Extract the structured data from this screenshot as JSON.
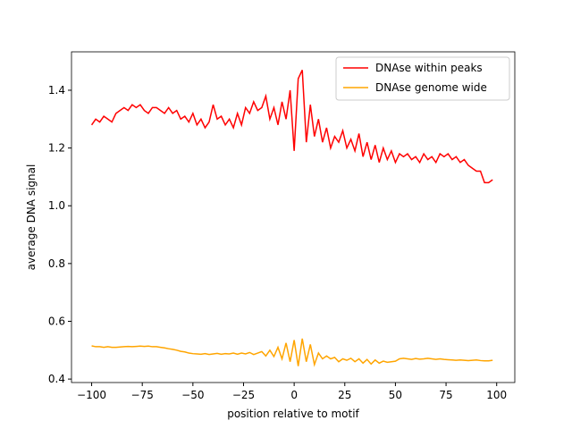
{
  "chart_data": {
    "type": "line",
    "xlabel": "position relative to motif",
    "ylabel": "average DNA signal",
    "x": [
      -100,
      -98,
      -96,
      -94,
      -92,
      -90,
      -88,
      -86,
      -84,
      -82,
      -80,
      -78,
      -76,
      -74,
      -72,
      -70,
      -68,
      -66,
      -64,
      -62,
      -60,
      -58,
      -56,
      -54,
      -52,
      -50,
      -48,
      -46,
      -44,
      -42,
      -40,
      -38,
      -36,
      -34,
      -32,
      -30,
      -28,
      -26,
      -24,
      -22,
      -20,
      -18,
      -16,
      -14,
      -12,
      -10,
      -8,
      -6,
      -4,
      -2,
      0,
      2,
      4,
      6,
      8,
      10,
      12,
      14,
      16,
      18,
      20,
      22,
      24,
      26,
      28,
      30,
      32,
      34,
      36,
      38,
      40,
      42,
      44,
      46,
      48,
      50,
      52,
      54,
      56,
      58,
      60,
      62,
      64,
      66,
      68,
      70,
      72,
      74,
      76,
      78,
      80,
      82,
      84,
      86,
      88,
      90,
      92,
      94,
      96,
      98
    ],
    "series": [
      {
        "name": "DNAse within peaks",
        "color": "#ff0000",
        "values": [
          1.28,
          1.3,
          1.29,
          1.31,
          1.3,
          1.29,
          1.32,
          1.33,
          1.34,
          1.33,
          1.35,
          1.34,
          1.35,
          1.33,
          1.32,
          1.34,
          1.34,
          1.33,
          1.32,
          1.34,
          1.32,
          1.33,
          1.3,
          1.31,
          1.29,
          1.32,
          1.28,
          1.3,
          1.27,
          1.29,
          1.35,
          1.3,
          1.31,
          1.28,
          1.3,
          1.27,
          1.32,
          1.28,
          1.34,
          1.32,
          1.36,
          1.33,
          1.34,
          1.38,
          1.3,
          1.34,
          1.28,
          1.36,
          1.3,
          1.4,
          1.19,
          1.44,
          1.47,
          1.22,
          1.35,
          1.24,
          1.3,
          1.22,
          1.27,
          1.2,
          1.24,
          1.22,
          1.26,
          1.2,
          1.23,
          1.19,
          1.25,
          1.17,
          1.22,
          1.16,
          1.21,
          1.15,
          1.2,
          1.16,
          1.19,
          1.15,
          1.18,
          1.17,
          1.18,
          1.16,
          1.17,
          1.15,
          1.18,
          1.16,
          1.17,
          1.15,
          1.18,
          1.17,
          1.18,
          1.16,
          1.17,
          1.15,
          1.16,
          1.14,
          1.13,
          1.12,
          1.12,
          1.08,
          1.08,
          1.09
        ]
      },
      {
        "name": "DNAse genome wide",
        "color": "#ffa500",
        "values": [
          0.515,
          0.512,
          0.512,
          0.51,
          0.512,
          0.51,
          0.51,
          0.511,
          0.512,
          0.513,
          0.512,
          0.513,
          0.514,
          0.513,
          0.514,
          0.512,
          0.512,
          0.51,
          0.508,
          0.505,
          0.503,
          0.5,
          0.496,
          0.494,
          0.49,
          0.488,
          0.487,
          0.486,
          0.488,
          0.485,
          0.487,
          0.489,
          0.486,
          0.488,
          0.487,
          0.49,
          0.486,
          0.49,
          0.487,
          0.492,
          0.485,
          0.49,
          0.495,
          0.48,
          0.5,
          0.478,
          0.51,
          0.47,
          0.525,
          0.46,
          0.535,
          0.445,
          0.54,
          0.46,
          0.52,
          0.45,
          0.49,
          0.47,
          0.48,
          0.47,
          0.475,
          0.46,
          0.47,
          0.465,
          0.472,
          0.46,
          0.47,
          0.455,
          0.468,
          0.452,
          0.466,
          0.455,
          0.462,
          0.458,
          0.46,
          0.462,
          0.47,
          0.472,
          0.47,
          0.468,
          0.471,
          0.469,
          0.47,
          0.472,
          0.47,
          0.468,
          0.47,
          0.468,
          0.467,
          0.466,
          0.465,
          0.466,
          0.465,
          0.464,
          0.465,
          0.466,
          0.464,
          0.463,
          0.463,
          0.465
        ]
      }
    ],
    "xlim": [
      -109.95,
      108.95
    ],
    "ylim": [
      0.388,
      1.533
    ],
    "xticks": [
      {
        "value": -100,
        "label": "−100"
      },
      {
        "value": -75,
        "label": "−75"
      },
      {
        "value": -50,
        "label": "−50"
      },
      {
        "value": -25,
        "label": "−25"
      },
      0,
      25,
      50,
      75,
      100
    ],
    "yticks": [
      0.4,
      0.6,
      0.8,
      {
        "value": 1,
        "label": "1.0"
      },
      1.2,
      1.4
    ],
    "legend": "upper right"
  }
}
